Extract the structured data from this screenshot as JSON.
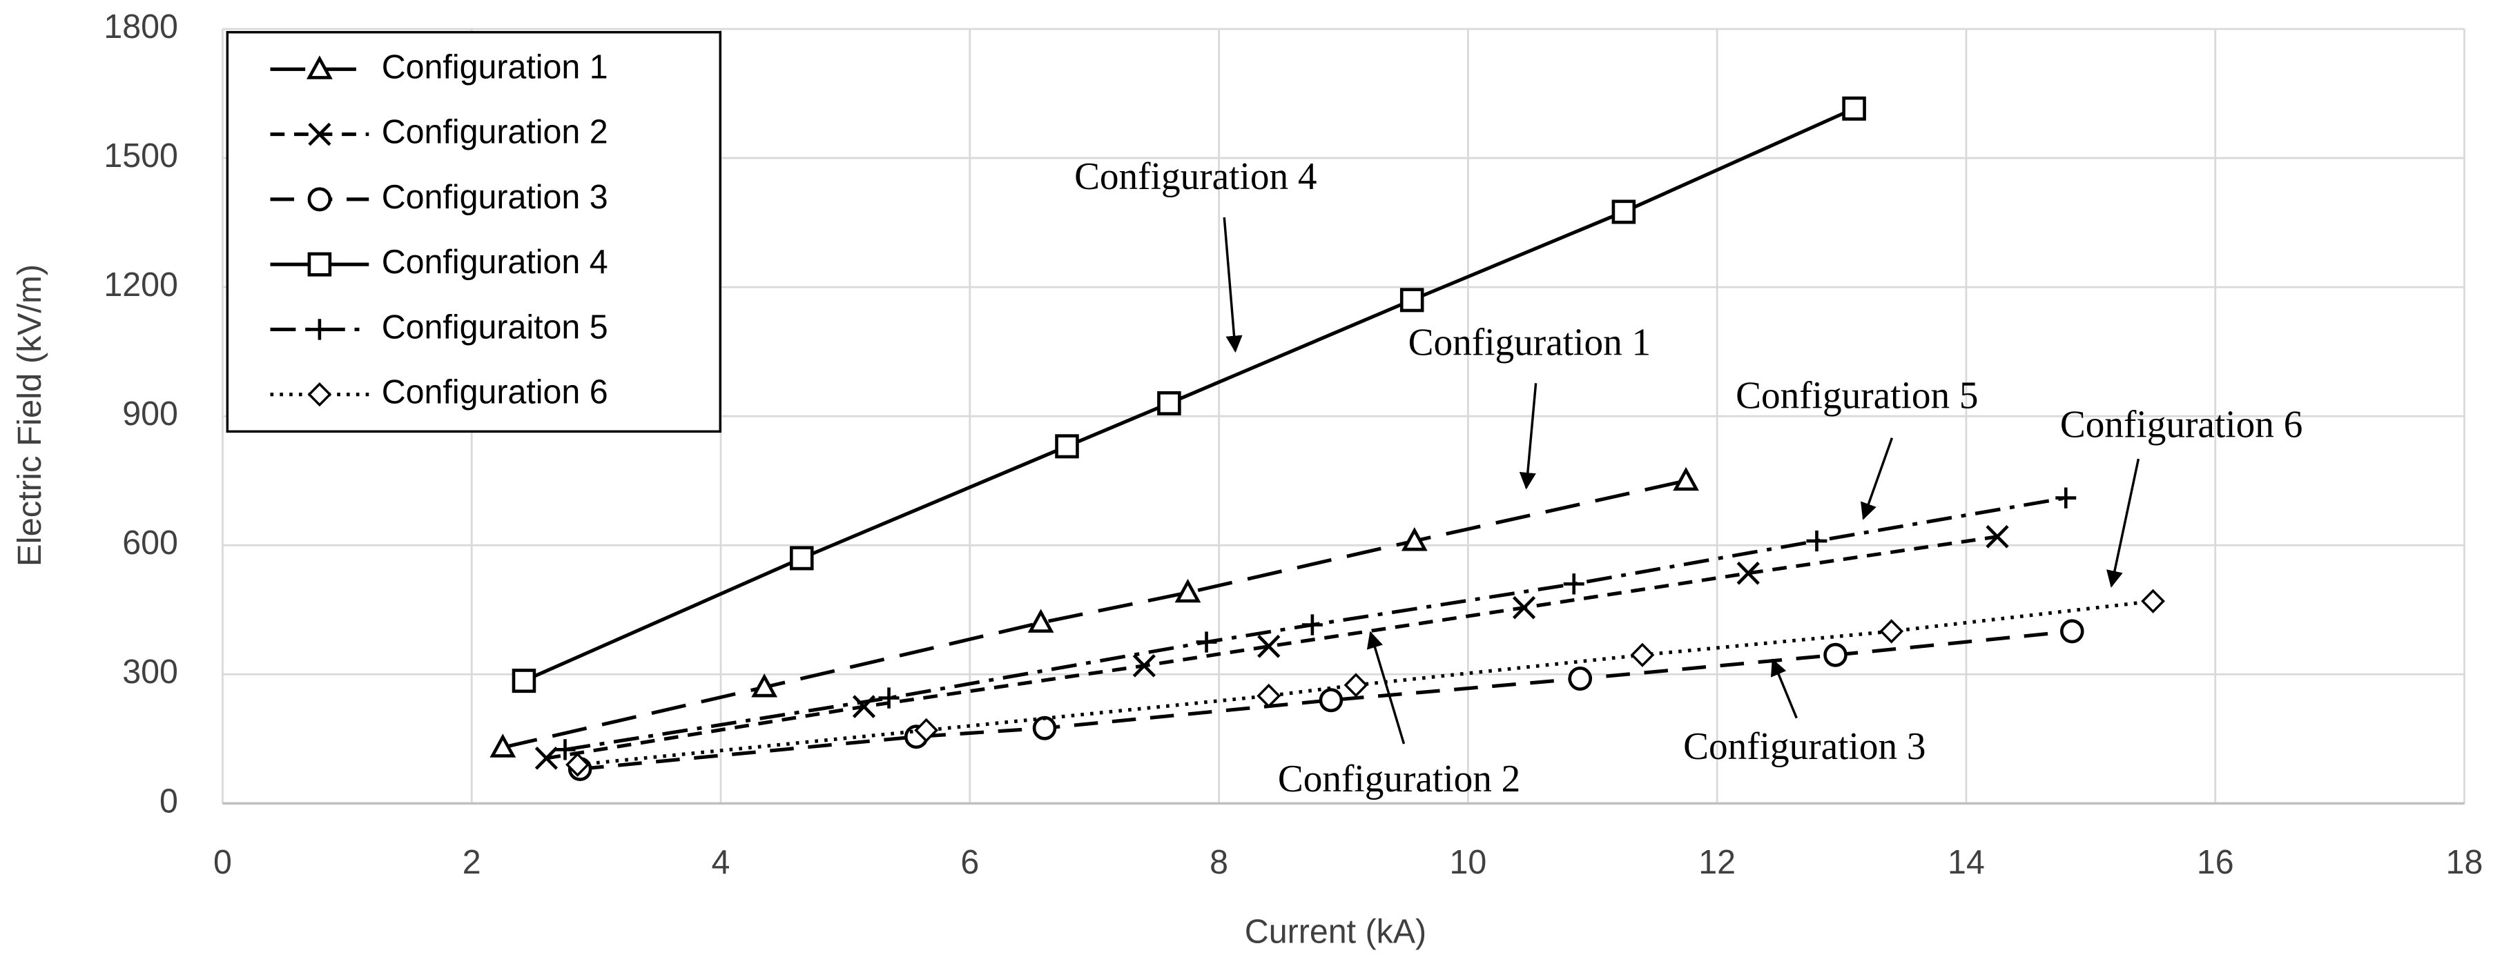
{
  "chart_data": {
    "type": "line",
    "xlabel": "Current (kA)",
    "ylabel": "Electric Field (kV/m)",
    "xlim": [
      0,
      18
    ],
    "xticks": [
      0,
      2,
      4,
      6,
      8,
      10,
      12,
      14,
      16,
      18
    ],
    "ylim": [
      0,
      1800
    ],
    "yticks": [
      0,
      300,
      600,
      900,
      1200,
      1500,
      1800
    ],
    "grid": true,
    "legend": "upper left",
    "series": [
      {
        "name": "Configuration 1",
        "color": "#000000",
        "marker": "triangle",
        "linestyle": "longdash",
        "x": [
          2.25,
          4.35,
          6.57,
          7.75,
          9.57,
          11.75
        ],
        "values": [
          130,
          270,
          420,
          490,
          610,
          750
        ]
      },
      {
        "name": "Configuration 2",
        "color": "#000000",
        "marker": "x",
        "linestyle": "dash",
        "x": [
          2.6,
          5.15,
          7.4,
          8.4,
          10.45,
          12.25,
          14.25
        ],
        "values": [
          105,
          225,
          320,
          365,
          455,
          535,
          620
        ]
      },
      {
        "name": "Configuration 3",
        "color": "#000000",
        "marker": "circle",
        "linestyle": "mediumdash",
        "x": [
          2.87,
          5.57,
          6.6,
          8.9,
          10.9,
          12.95,
          14.85
        ],
        "values": [
          80,
          155,
          175,
          240,
          290,
          345,
          400
        ]
      },
      {
        "name": "Configuration 4",
        "color": "#000000",
        "marker": "square",
        "linestyle": "solid",
        "x": [
          2.42,
          4.65,
          6.78,
          7.6,
          9.55,
          11.25,
          13.1
        ],
        "values": [
          285,
          570,
          830,
          930,
          1170,
          1375,
          1615
        ]
      },
      {
        "name": "Configuraiton 5",
        "color": "#000000",
        "marker": "plus",
        "linestyle": "dashdot",
        "x": [
          2.75,
          5.35,
          7.9,
          8.75,
          10.85,
          12.8,
          14.8
        ],
        "values": [
          125,
          245,
          375,
          415,
          510,
          610,
          710
        ]
      },
      {
        "name": "Configuration 6",
        "color": "#000000",
        "marker": "diamond",
        "linestyle": "dotted",
        "x": [
          2.85,
          5.65,
          8.4,
          9.1,
          11.4,
          13.4,
          15.5
        ],
        "values": [
          90,
          170,
          250,
          275,
          345,
          400,
          470
        ]
      }
    ],
    "annotations": [
      "Configuration 4",
      "Configuration 1",
      "Configuration 5",
      "Configuration 6",
      "Configuration 2",
      "Configuration 3"
    ]
  }
}
